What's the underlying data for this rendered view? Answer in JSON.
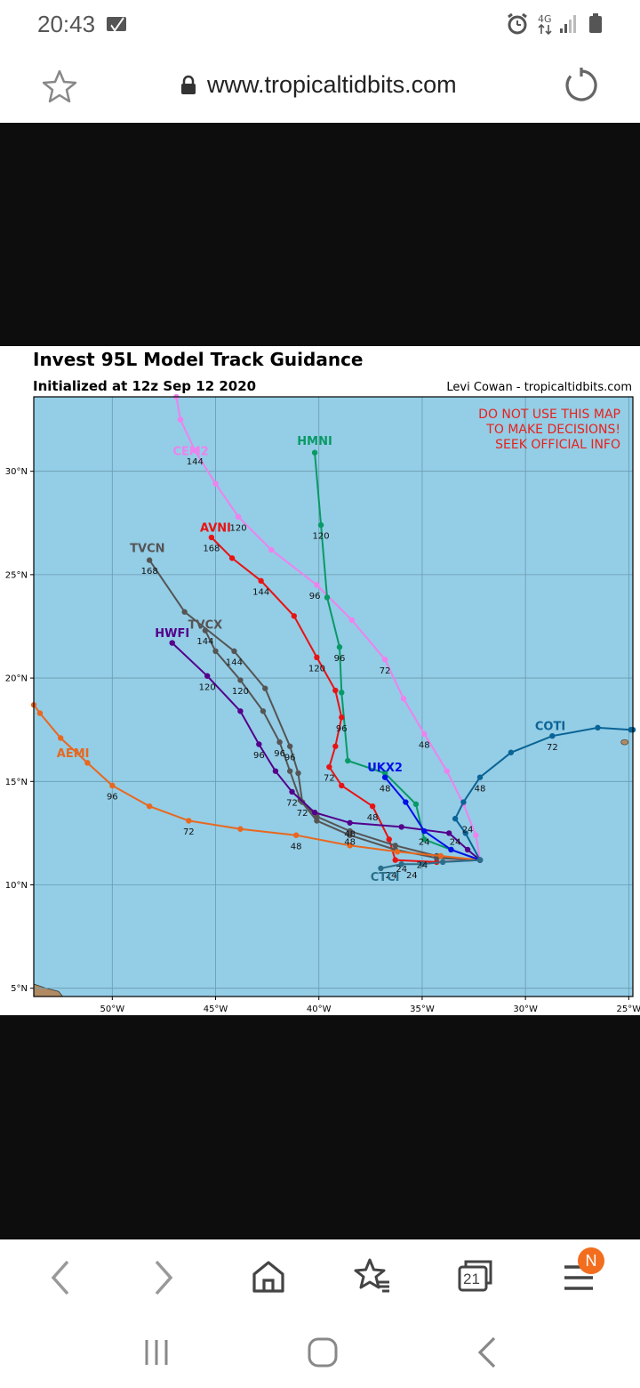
{
  "status": {
    "time": "20:43",
    "network": "4G"
  },
  "browser": {
    "url": "www.tropicaltidbits.com",
    "tabs_count": "21",
    "notification_badge": "N"
  },
  "figure": {
    "title": "Invest 95L Model Track Guidance",
    "subtitle": "Initialized at 12z Sep 12 2020",
    "credit": "Levi Cowan - tropicaltidbits.com",
    "warning": [
      "DO NOT USE THIS MAP",
      "TO MAKE DECISIONS!",
      "SEEK OFFICIAL INFO"
    ]
  },
  "chart_data": {
    "type": "scatter",
    "title": "Invest 95L Model Track Guidance",
    "subtitle": "Initialized at 12z Sep 12 2020",
    "xlim": [
      -53.8,
      -24.8
    ],
    "ylim": [
      4.6,
      33.6
    ],
    "x_ticks": [
      -50,
      -45,
      -40,
      -35,
      -30,
      -25
    ],
    "x_tick_labels": [
      "50°W",
      "45°W",
      "40°W",
      "35°W",
      "30°W",
      "25°W"
    ],
    "y_ticks": [
      5,
      10,
      15,
      20,
      25,
      30
    ],
    "y_tick_labels": [
      "5°N",
      "10°N",
      "15°N",
      "20°N",
      "25°N",
      "30°N"
    ],
    "grid": true,
    "ocean_color": "#94cde6",
    "land_color": "#b08a62",
    "series": [
      {
        "name": "CEM2",
        "color": "#ee82ee",
        "label_pos": [
          -46.2,
          31.0
        ],
        "points": [
          [
            -32.2,
            11.2
          ],
          [
            -32.4,
            12.4
          ],
          [
            -33.0,
            13.9
          ],
          [
            -33.8,
            15.5
          ],
          [
            -34.9,
            17.3
          ],
          [
            -35.9,
            19.0
          ],
          [
            -36.8,
            20.9
          ],
          [
            -38.4,
            22.8
          ],
          [
            -40.1,
            24.5
          ],
          [
            -42.3,
            26.2
          ],
          [
            -43.9,
            27.8
          ],
          [
            -45.0,
            29.4
          ],
          [
            -46.0,
            31.0
          ],
          [
            -46.7,
            32.5
          ],
          [
            -46.9,
            33.6
          ]
        ],
        "tau_labels": [
          [
            "48",
            -34.9,
            16.8
          ],
          [
            "72",
            -36.8,
            20.4
          ],
          [
            "96",
            -40.2,
            24.0
          ],
          [
            "120",
            -43.9,
            27.3
          ],
          [
            "144",
            -46.0,
            30.5
          ]
        ]
      },
      {
        "name": "HMNI",
        "color": "#089a66",
        "label_pos": [
          -40.2,
          31.5
        ],
        "points": [
          [
            -32.2,
            11.2
          ],
          [
            -33.6,
            11.7
          ],
          [
            -34.9,
            12.2
          ],
          [
            -35.3,
            13.9
          ],
          [
            -36.8,
            15.4
          ],
          [
            -38.6,
            16.0
          ],
          [
            -38.9,
            19.3
          ],
          [
            -39.0,
            21.5
          ],
          [
            -39.6,
            23.9
          ],
          [
            -39.9,
            27.4
          ],
          [
            -40.2,
            30.9
          ]
        ],
        "tau_labels": [
          [
            "96",
            -39.0,
            21.0
          ],
          [
            "120",
            -39.9,
            26.9
          ]
        ]
      },
      {
        "name": "AVNI",
        "color": "#e81313",
        "label_pos": [
          -45.0,
          27.3
        ],
        "points": [
          [
            -32.2,
            11.2
          ],
          [
            -34.3,
            11.1
          ],
          [
            -36.3,
            11.2
          ],
          [
            -36.6,
            12.2
          ],
          [
            -37.4,
            13.8
          ],
          [
            -38.9,
            14.8
          ],
          [
            -39.5,
            15.7
          ],
          [
            -39.2,
            16.7
          ],
          [
            -38.9,
            18.1
          ],
          [
            -39.2,
            19.4
          ],
          [
            -40.1,
            21.0
          ],
          [
            -41.2,
            23.0
          ],
          [
            -42.8,
            24.7
          ],
          [
            -44.2,
            25.8
          ],
          [
            -45.2,
            26.8
          ]
        ],
        "tau_labels": [
          [
            "48",
            -37.4,
            13.3
          ],
          [
            "72",
            -39.5,
            15.2
          ],
          [
            "96",
            -38.9,
            17.6
          ],
          [
            "120",
            -40.1,
            20.5
          ],
          [
            "144",
            -42.8,
            24.2
          ],
          [
            "168",
            -45.2,
            26.3
          ]
        ]
      },
      {
        "name": "TVCN",
        "color": "#555555",
        "label_pos": [
          -48.3,
          26.3
        ],
        "points": [
          [
            -32.2,
            11.2
          ],
          [
            -34.3,
            11.4
          ],
          [
            -36.3,
            11.9
          ],
          [
            -38.5,
            12.6
          ],
          [
            -40.1,
            13.3
          ],
          [
            -40.8,
            14.0
          ],
          [
            -41.0,
            15.4
          ],
          [
            -41.4,
            16.7
          ],
          [
            -42.6,
            19.5
          ],
          [
            -44.1,
            21.3
          ],
          [
            -46.5,
            23.2
          ],
          [
            -48.2,
            25.7
          ]
        ],
        "tau_labels": [
          [
            "72",
            -40.8,
            13.5
          ],
          [
            "96",
            -41.4,
            16.2
          ],
          [
            "144",
            -44.1,
            20.8
          ],
          [
            "168",
            -48.2,
            25.2
          ]
        ]
      },
      {
        "name": "TVCX",
        "color": "#555555",
        "label_pos": [
          -45.5,
          22.6
        ],
        "points": [
          [
            -32.2,
            11.2
          ],
          [
            -34.3,
            11.3
          ],
          [
            -36.3,
            11.7
          ],
          [
            -38.5,
            12.4
          ],
          [
            -40.1,
            13.1
          ],
          [
            -40.9,
            14.1
          ],
          [
            -41.4,
            15.5
          ],
          [
            -41.9,
            16.9
          ],
          [
            -42.7,
            18.4
          ],
          [
            -43.8,
            19.9
          ],
          [
            -45.0,
            21.3
          ],
          [
            -45.5,
            22.3
          ]
        ],
        "tau_labels": [
          [
            "96",
            -41.9,
            16.4
          ],
          [
            "120",
            -43.8,
            19.4
          ],
          [
            "144",
            -45.5,
            21.8
          ]
        ]
      },
      {
        "name": "HWFI",
        "color": "#53008a",
        "label_pos": [
          -47.1,
          22.2
        ],
        "points": [
          [
            -32.2,
            11.2
          ],
          [
            -32.8,
            11.7
          ],
          [
            -33.7,
            12.5
          ],
          [
            -36.0,
            12.8
          ],
          [
            -38.5,
            13.0
          ],
          [
            -40.2,
            13.5
          ],
          [
            -41.3,
            14.5
          ],
          [
            -42.1,
            15.5
          ],
          [
            -42.9,
            16.8
          ],
          [
            -43.8,
            18.4
          ],
          [
            -45.4,
            20.1
          ],
          [
            -47.1,
            21.7
          ]
        ],
        "tau_labels": [
          [
            "72",
            -41.3,
            14.0
          ],
          [
            "96",
            -42.9,
            16.3
          ],
          [
            "120",
            -45.4,
            19.6
          ]
        ]
      },
      {
        "name": "AEMI",
        "color": "#e8681f",
        "label_pos": [
          -51.9,
          16.4
        ],
        "points": [
          [
            -32.2,
            11.2
          ],
          [
            -34.1,
            11.4
          ],
          [
            -36.2,
            11.6
          ],
          [
            -38.5,
            11.9
          ],
          [
            -41.1,
            12.4
          ],
          [
            -43.8,
            12.7
          ],
          [
            -46.3,
            13.1
          ],
          [
            -48.2,
            13.8
          ],
          [
            -50.0,
            14.8
          ],
          [
            -51.2,
            15.9
          ],
          [
            -52.5,
            17.1
          ],
          [
            -53.5,
            18.3
          ],
          [
            -53.8,
            18.7
          ]
        ],
        "tau_labels": [
          [
            "48",
            -41.1,
            11.9
          ],
          [
            "72",
            -46.3,
            12.6
          ],
          [
            "96",
            -50.0,
            14.3
          ]
        ]
      },
      {
        "name": "UKX2",
        "color": "#0010e8",
        "label_pos": [
          -36.8,
          15.7
        ],
        "points": [
          [
            -32.2,
            11.2
          ],
          [
            -33.6,
            11.7
          ],
          [
            -34.9,
            12.6
          ],
          [
            -35.8,
            14.0
          ],
          [
            -36.8,
            15.2
          ]
        ],
        "tau_labels": [
          [
            "48",
            -36.8,
            14.7
          ]
        ]
      },
      {
        "name": "COTI",
        "color": "#0a6496",
        "label_pos": [
          -28.8,
          17.7
        ],
        "points": [
          [
            -32.2,
            11.2
          ],
          [
            -32.9,
            12.5
          ],
          [
            -33.4,
            13.2
          ],
          [
            -33.0,
            14.0
          ],
          [
            -32.2,
            15.2
          ],
          [
            -30.7,
            16.4
          ],
          [
            -28.7,
            17.2
          ],
          [
            -26.5,
            17.6
          ],
          [
            -24.9,
            17.5
          ],
          [
            -24.8,
            17.5
          ]
        ],
        "tau_labels": [
          [
            "24",
            -32.8,
            12.7
          ],
          [
            "48",
            -32.2,
            14.7
          ],
          [
            "72",
            -28.7,
            16.7
          ]
        ]
      },
      {
        "name": "CTCI",
        "color": "#2b6f8a",
        "label_pos": [
          -36.8,
          10.4
        ],
        "points": [
          [
            -32.2,
            11.2
          ],
          [
            -34.0,
            11.1
          ],
          [
            -35.0,
            11.0
          ],
          [
            -36.0,
            11.0
          ],
          [
            -37.0,
            10.8
          ]
        ],
        "tau_labels": [
          [
            "24",
            -36.5,
            10.5
          ],
          [
            "24",
            -35.5,
            10.5
          ],
          [
            "24",
            -35.0,
            11.0
          ],
          [
            "24",
            -34.9,
            12.1
          ],
          [
            "24",
            -33.4,
            12.1
          ],
          [
            "24",
            -36.0,
            10.8
          ],
          [
            "48",
            -38.5,
            12.1
          ],
          [
            "48",
            -38.5,
            12.5
          ]
        ]
      }
    ]
  }
}
